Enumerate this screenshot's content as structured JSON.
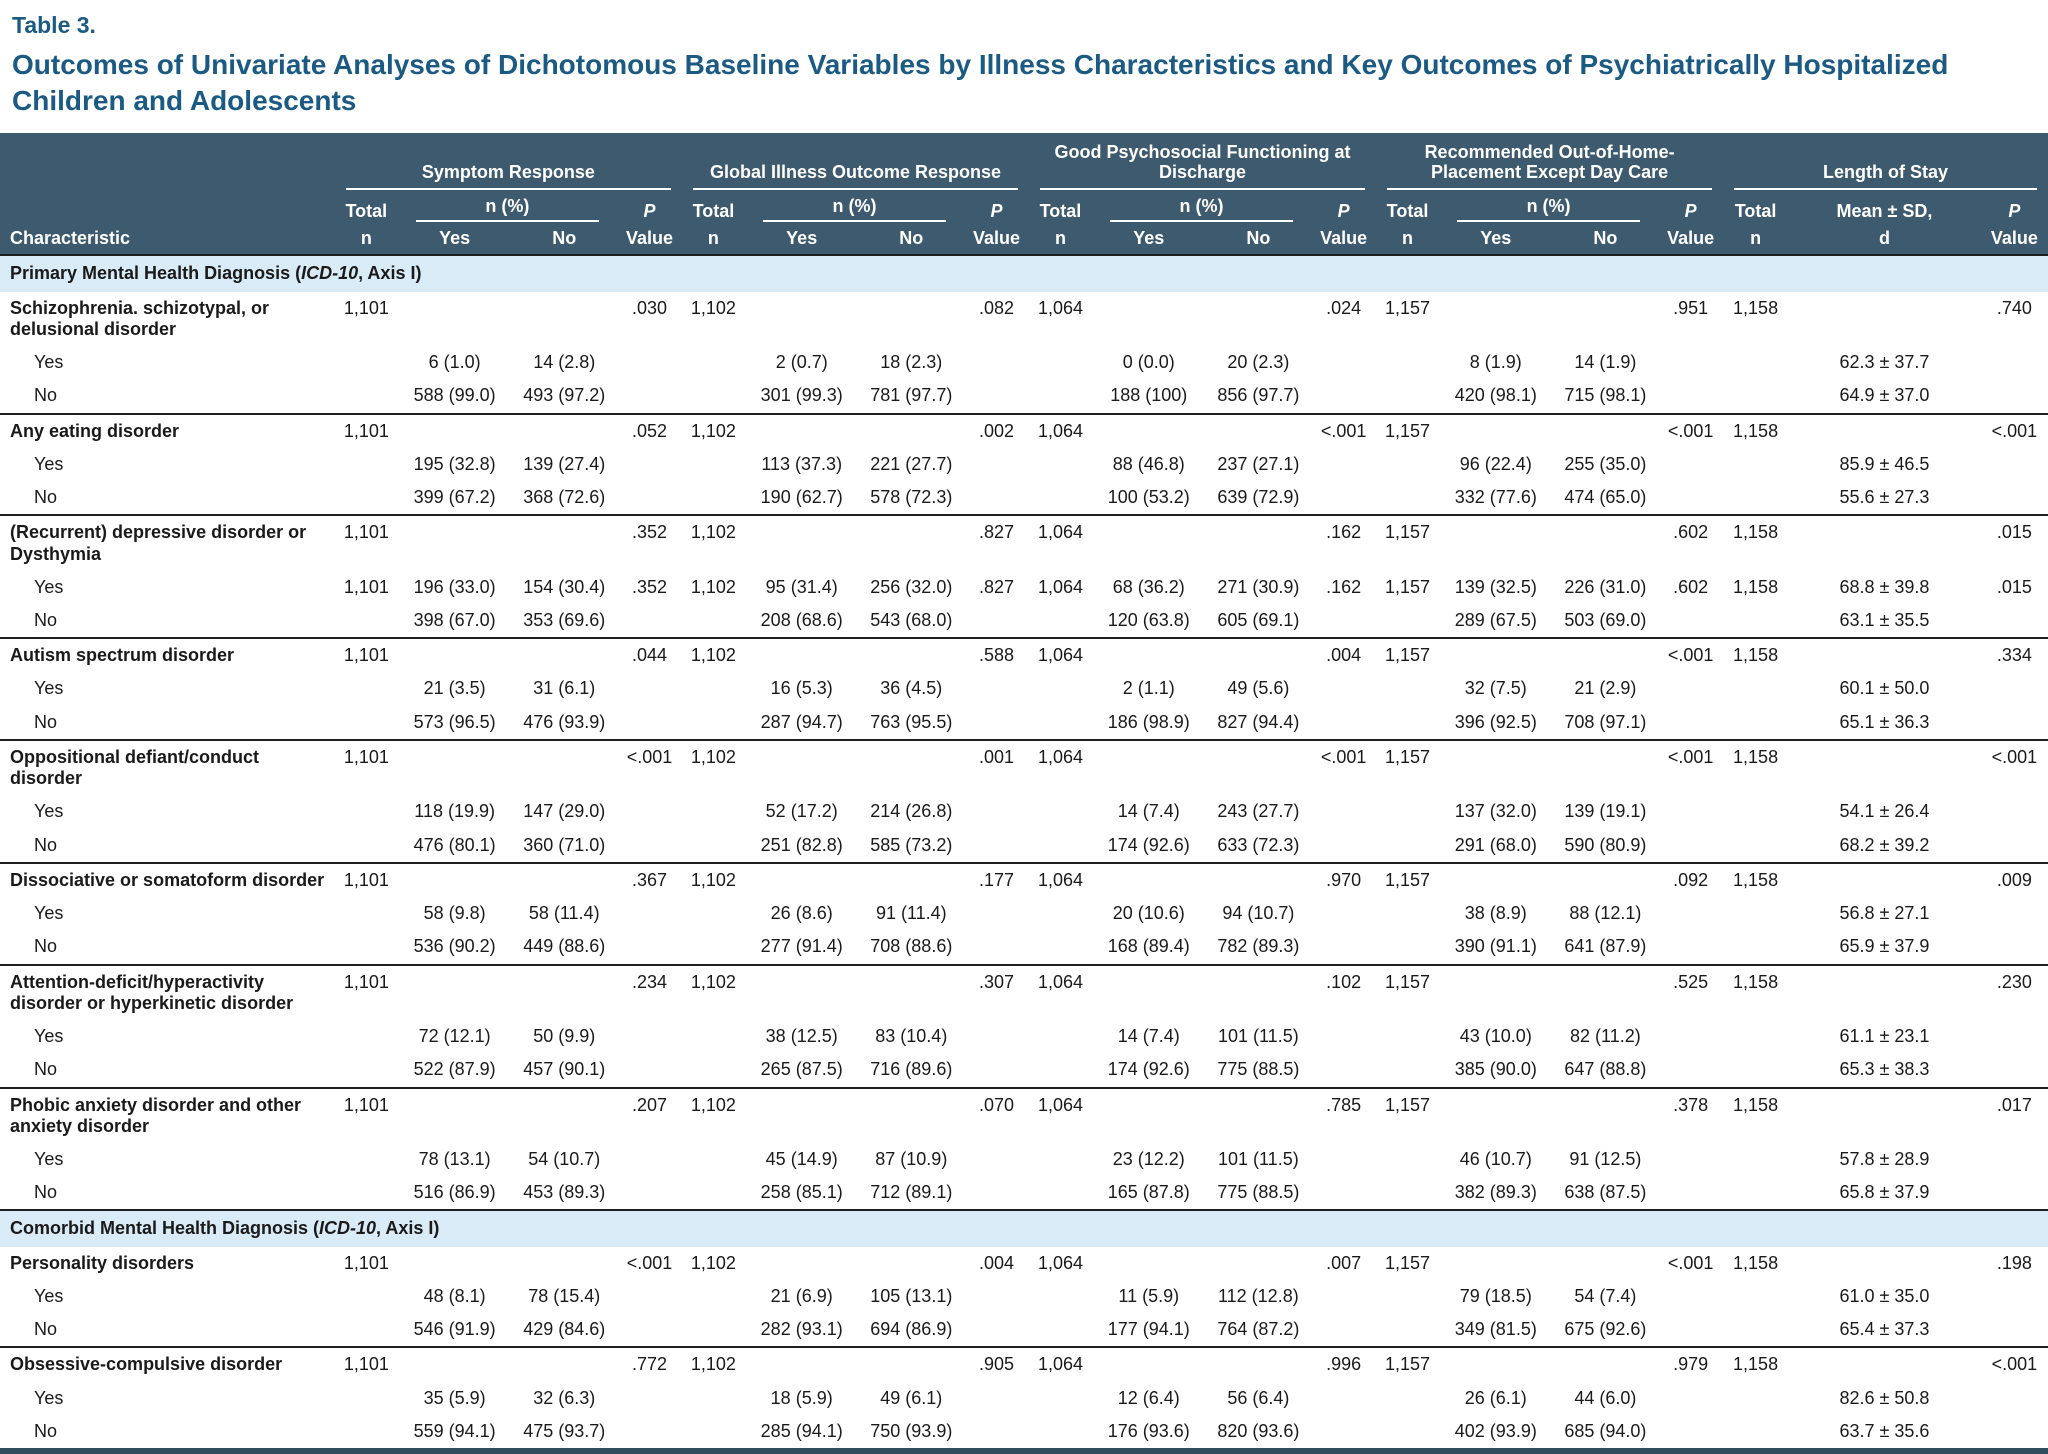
{
  "meta": {
    "label": "Table 3.",
    "title": "Outcomes of Univariate Analyses of Dichotomous Baseline Variables by Illness Characteristics and Key Outcomes of Psychiatrically Hospitalized Children and Adolescents"
  },
  "header": {
    "characteristic": "Characteristic",
    "groups": [
      {
        "label": "Symptom Response"
      },
      {
        "label": "Global Illness Outcome Response"
      },
      {
        "label": "Good Psychosocial Functioning at Discharge"
      },
      {
        "label": "Recommended Out-of-Home-Placement Except Day Care"
      },
      {
        "label": "Length of Stay"
      }
    ],
    "total": "Total",
    "n": "n",
    "npct": "n (%)",
    "yes": "Yes",
    "no": "No",
    "p": "P",
    "value": "Value",
    "mean_sd": "Mean ± SD,",
    "d": "d"
  },
  "rows": [
    {
      "type": "section",
      "segments": [
        {
          "t": "Primary Mental Health Diagnosis ("
        },
        {
          "t": "ICD-10",
          "i": true
        },
        {
          "t": ", Axis I)"
        }
      ]
    },
    {
      "type": "char",
      "cells": [
        "Schizophrenia. schizotypal, or delusional disorder",
        "1,101",
        "",
        "",
        ".030",
        "1,102",
        "",
        "",
        ".082",
        "1,064",
        "",
        "",
        ".024",
        "1,157",
        "",
        "",
        ".951",
        "1,158",
        "",
        ".740"
      ]
    },
    {
      "type": "sub",
      "cells": [
        "Yes",
        "",
        "6 (1.0)",
        "14 (2.8)",
        "",
        "",
        "2 (0.7)",
        "18 (2.3)",
        "",
        "",
        "0 (0.0)",
        "20 (2.3)",
        "",
        "",
        "8 (1.9)",
        "14 (1.9)",
        "",
        "",
        "62.3 ± 37.7",
        ""
      ]
    },
    {
      "type": "sub",
      "cells": [
        "No",
        "",
        "588 (99.0)",
        "493 (97.2)",
        "",
        "",
        "301 (99.3)",
        "781 (97.7)",
        "",
        "",
        "188 (100)",
        "856 (97.7)",
        "",
        "",
        "420 (98.1)",
        "715 (98.1)",
        "",
        "",
        "64.9 ± 37.0",
        ""
      ]
    },
    {
      "type": "char",
      "cells": [
        "Any eating disorder",
        "1,101",
        "",
        "",
        ".052",
        "1,102",
        "",
        "",
        ".002",
        "1,064",
        "",
        "",
        "<.001",
        "1,157",
        "",
        "",
        "<.001",
        "1,158",
        "",
        "<.001"
      ]
    },
    {
      "type": "sub",
      "cells": [
        "Yes",
        "",
        "195 (32.8)",
        "139 (27.4)",
        "",
        "",
        "113 (37.3)",
        "221 (27.7)",
        "",
        "",
        "88 (46.8)",
        "237 (27.1)",
        "",
        "",
        "96 (22.4)",
        "255 (35.0)",
        "",
        "",
        "85.9 ± 46.5",
        ""
      ]
    },
    {
      "type": "sub",
      "cells": [
        "No",
        "",
        "399 (67.2)",
        "368 (72.6)",
        "",
        "",
        "190 (62.7)",
        "578 (72.3)",
        "",
        "",
        "100 (53.2)",
        "639 (72.9)",
        "",
        "",
        "332 (77.6)",
        "474 (65.0)",
        "",
        "",
        "55.6 ± 27.3",
        ""
      ]
    },
    {
      "type": "char",
      "cells": [
        "(Recurrent) depressive disorder or Dysthymia",
        "1,101",
        "",
        "",
        ".352",
        "1,102",
        "",
        "",
        ".827",
        "1,064",
        "",
        "",
        ".162",
        "1,157",
        "",
        "",
        ".602",
        "1,158",
        "",
        ".015"
      ]
    },
    {
      "type": "sub",
      "cells": [
        "Yes",
        "1,101",
        "196 (33.0)",
        "154 (30.4)",
        ".352",
        "1,102",
        "95 (31.4)",
        "256 (32.0)",
        ".827",
        "1,064",
        "68 (36.2)",
        "271 (30.9)",
        ".162",
        "1,157",
        "139 (32.5)",
        "226 (31.0)",
        ".602",
        "1,158",
        "68.8 ± 39.8",
        ".015"
      ]
    },
    {
      "type": "sub",
      "cells": [
        "No",
        "",
        "398 (67.0)",
        "353 (69.6)",
        "",
        "",
        "208 (68.6)",
        "543 (68.0)",
        "",
        "",
        "120 (63.8)",
        "605 (69.1)",
        "",
        "",
        "289 (67.5)",
        "503 (69.0)",
        "",
        "",
        "63.1 ± 35.5",
        ""
      ]
    },
    {
      "type": "char",
      "cells": [
        "Autism spectrum disorder",
        "1,101",
        "",
        "",
        ".044",
        "1,102",
        "",
        "",
        ".588",
        "1,064",
        "",
        "",
        ".004",
        "1,157",
        "",
        "",
        "<.001",
        "1,158",
        "",
        ".334"
      ]
    },
    {
      "type": "sub",
      "cells": [
        "Yes",
        "",
        "21 (3.5)",
        "31 (6.1)",
        "",
        "",
        "16 (5.3)",
        "36 (4.5)",
        "",
        "",
        "2 (1.1)",
        "49 (5.6)",
        "",
        "",
        "32 (7.5)",
        "21 (2.9)",
        "",
        "",
        "60.1 ± 50.0",
        ""
      ]
    },
    {
      "type": "sub",
      "cells": [
        "No",
        "",
        "573 (96.5)",
        "476 (93.9)",
        "",
        "",
        "287 (94.7)",
        "763 (95.5)",
        "",
        "",
        "186 (98.9)",
        "827 (94.4)",
        "",
        "",
        "396 (92.5)",
        "708 (97.1)",
        "",
        "",
        "65.1 ± 36.3",
        ""
      ]
    },
    {
      "type": "char",
      "cells": [
        "Oppositional defiant/conduct disorder",
        "1,101",
        "",
        "",
        "<.001",
        "1,102",
        "",
        "",
        ".001",
        "1,064",
        "",
        "",
        "<.001",
        "1,157",
        "",
        "",
        "<.001",
        "1,158",
        "",
        "<.001"
      ]
    },
    {
      "type": "sub",
      "cells": [
        "Yes",
        "",
        "118 (19.9)",
        "147 (29.0)",
        "",
        "",
        "52 (17.2)",
        "214 (26.8)",
        "",
        "",
        "14 (7.4)",
        "243 (27.7)",
        "",
        "",
        "137 (32.0)",
        "139 (19.1)",
        "",
        "",
        "54.1 ± 26.4",
        ""
      ]
    },
    {
      "type": "sub",
      "cells": [
        "No",
        "",
        "476 (80.1)",
        "360 (71.0)",
        "",
        "",
        "251 (82.8)",
        "585 (73.2)",
        "",
        "",
        "174 (92.6)",
        "633 (72.3)",
        "",
        "",
        "291 (68.0)",
        "590 (80.9)",
        "",
        "",
        "68.2 ± 39.2",
        ""
      ]
    },
    {
      "type": "char",
      "cells": [
        "Dissociative or somatoform disorder",
        "1,101",
        "",
        "",
        ".367",
        "1,102",
        "",
        "",
        ".177",
        "1,064",
        "",
        "",
        ".970",
        "1,157",
        "",
        "",
        ".092",
        "1,158",
        "",
        ".009"
      ]
    },
    {
      "type": "sub",
      "cells": [
        "Yes",
        "",
        "58 (9.8)",
        "58 (11.4)",
        "",
        "",
        "26 (8.6)",
        "91 (11.4)",
        "",
        "",
        "20 (10.6)",
        "94 (10.7)",
        "",
        "",
        "38 (8.9)",
        "88 (12.1)",
        "",
        "",
        "56.8 ± 27.1",
        ""
      ]
    },
    {
      "type": "sub",
      "cells": [
        "No",
        "",
        "536 (90.2)",
        "449 (88.6)",
        "",
        "",
        "277 (91.4)",
        "708 (88.6)",
        "",
        "",
        "168 (89.4)",
        "782 (89.3)",
        "",
        "",
        "390 (91.1)",
        "641 (87.9)",
        "",
        "",
        "65.9 ± 37.9",
        ""
      ]
    },
    {
      "type": "char",
      "cells": [
        "Attention-deficit/hyperactivity disorder or hyperkinetic disorder",
        "1,101",
        "",
        "",
        ".234",
        "1,102",
        "",
        "",
        ".307",
        "1,064",
        "",
        "",
        ".102",
        "1,157",
        "",
        "",
        ".525",
        "1,158",
        "",
        ".230"
      ]
    },
    {
      "type": "sub",
      "cells": [
        "Yes",
        "",
        "72 (12.1)",
        "50 (9.9)",
        "",
        "",
        "38 (12.5)",
        "83 (10.4)",
        "",
        "",
        "14 (7.4)",
        "101 (11.5)",
        "",
        "",
        "43 (10.0)",
        "82 (11.2)",
        "",
        "",
        "61.1 ± 23.1",
        ""
      ]
    },
    {
      "type": "sub",
      "cells": [
        "No",
        "",
        "522 (87.9)",
        "457 (90.1)",
        "",
        "",
        "265 (87.5)",
        "716 (89.6)",
        "",
        "",
        "174 (92.6)",
        "775 (88.5)",
        "",
        "",
        "385 (90.0)",
        "647 (88.8)",
        "",
        "",
        "65.3 ± 38.3",
        ""
      ]
    },
    {
      "type": "char",
      "cells": [
        "Phobic anxiety disorder and other anxiety disorder",
        "1,101",
        "",
        "",
        ".207",
        "1,102",
        "",
        "",
        ".070",
        "1,064",
        "",
        "",
        ".785",
        "1,157",
        "",
        "",
        ".378",
        "1,158",
        "",
        ".017"
      ]
    },
    {
      "type": "sub",
      "cells": [
        "Yes",
        "",
        "78 (13.1)",
        "54 (10.7)",
        "",
        "",
        "45 (14.9)",
        "87 (10.9)",
        "",
        "",
        "23 (12.2)",
        "101 (11.5)",
        "",
        "",
        "46 (10.7)",
        "91 (12.5)",
        "",
        "",
        "57.8 ± 28.9",
        ""
      ]
    },
    {
      "type": "sub",
      "cells": [
        "No",
        "",
        "516 (86.9)",
        "453 (89.3)",
        "",
        "",
        "258 (85.1)",
        "712 (89.1)",
        "",
        "",
        "165 (87.8)",
        "775 (88.5)",
        "",
        "",
        "382 (89.3)",
        "638 (87.5)",
        "",
        "",
        "65.8 ± 37.9",
        ""
      ]
    },
    {
      "type": "section",
      "segments": [
        {
          "t": "Comorbid Mental Health Diagnosis ("
        },
        {
          "t": "ICD-10",
          "i": true
        },
        {
          "t": ", Axis I)"
        }
      ]
    },
    {
      "type": "char",
      "cells": [
        "Personality disorders",
        "1,101",
        "",
        "",
        "<.001",
        "1,102",
        "",
        "",
        ".004",
        "1,064",
        "",
        "",
        ".007",
        "1,157",
        "",
        "",
        "<.001",
        "1,158",
        "",
        ".198"
      ]
    },
    {
      "type": "sub",
      "cells": [
        "Yes",
        "",
        "48 (8.1)",
        "78 (15.4)",
        "",
        "",
        "21 (6.9)",
        "105 (13.1)",
        "",
        "",
        "11 (5.9)",
        "112 (12.8)",
        "",
        "",
        "79 (18.5)",
        "54 (7.4)",
        "",
        "",
        "61.0 ± 35.0",
        ""
      ]
    },
    {
      "type": "sub",
      "cells": [
        "No",
        "",
        "546 (91.9)",
        "429 (84.6)",
        "",
        "",
        "282 (93.1)",
        "694 (86.9)",
        "",
        "",
        "177 (94.1)",
        "764 (87.2)",
        "",
        "",
        "349 (81.5)",
        "675 (92.6)",
        "",
        "",
        "65.4 ± 37.3",
        ""
      ]
    },
    {
      "type": "char",
      "cells": [
        "Obsessive-compulsive disorder",
        "1,101",
        "",
        "",
        ".772",
        "1,102",
        "",
        "",
        ".905",
        "1,064",
        "",
        "",
        ".996",
        "1,157",
        "",
        "",
        ".979",
        "1,158",
        "",
        "<.001"
      ]
    },
    {
      "type": "sub",
      "cells": [
        "Yes",
        "",
        "35 (5.9)",
        "32 (6.3)",
        "",
        "",
        "18 (5.9)",
        "49 (6.1)",
        "",
        "",
        "12 (6.4)",
        "56 (6.4)",
        "",
        "",
        "26 (6.1)",
        "44 (6.0)",
        "",
        "",
        "82.6 ± 50.8",
        ""
      ]
    },
    {
      "type": "sub",
      "cells": [
        "No",
        "",
        "559 (94.1)",
        "475 (93.7)",
        "",
        "",
        "285 (94.1)",
        "750 (93.9)",
        "",
        "",
        "176 (93.6)",
        "820 (93.6)",
        "",
        "",
        "402 (93.9)",
        "685 (94.0)",
        "",
        "",
        "63.7 ± 35.6",
        ""
      ]
    }
  ]
}
